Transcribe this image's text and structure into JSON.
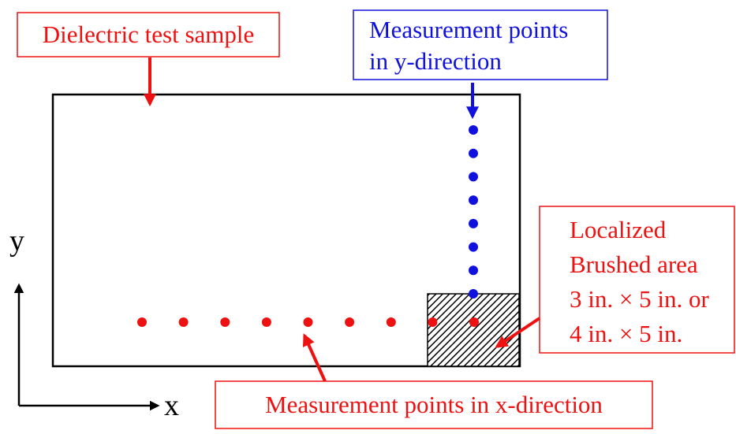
{
  "labels": {
    "sample": "Dielectric test sample",
    "y_points": [
      "Measurement points",
      "in y-direction"
    ],
    "x_points": "Measurement points in x-direction",
    "brushed": [
      "Localized",
      "Brushed area",
      "3 in. × 5 in. or",
      "4 in. × 5 in."
    ],
    "axis_x": "x",
    "axis_y": "y"
  },
  "colors": {
    "red": "#ee1111",
    "blue": "#1111dd",
    "outline": "#000000"
  },
  "measurement_points": {
    "x_direction_count": 9,
    "y_direction_count": 8
  }
}
